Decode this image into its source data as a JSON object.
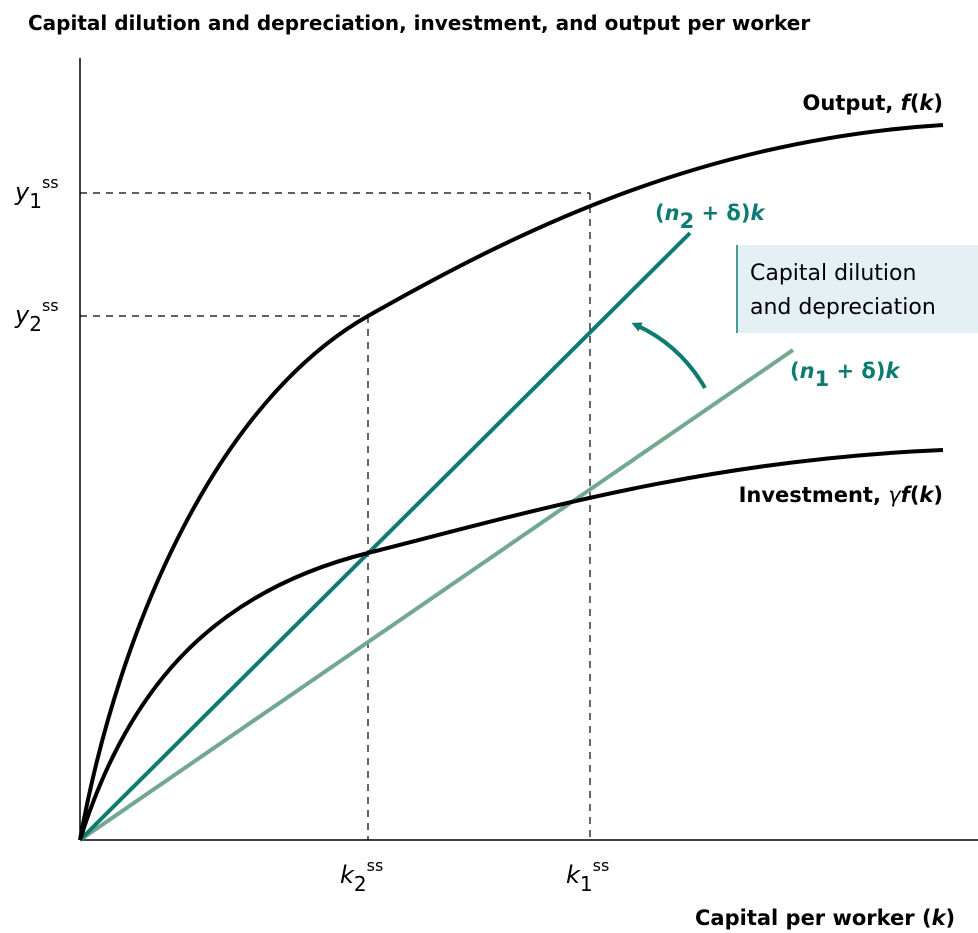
{
  "title": "Capital dilution and depreciation, investment, and output per worker",
  "x_axis_label": [
    "Capital per worker (",
    "k",
    ")"
  ],
  "output_label": [
    "Output, ",
    "f",
    "(",
    "k",
    ")"
  ],
  "investment_label": [
    "Investment, ",
    "γ",
    "f",
    "(",
    "k",
    ")"
  ],
  "line_n2_label": [
    "(",
    "n",
    "2",
    " + δ)",
    "k"
  ],
  "line_n1_label": [
    "(",
    "n",
    "1",
    " + δ)",
    "k"
  ],
  "box_label": [
    "Capital dilution",
    "and depreciation"
  ],
  "y1": [
    "y",
    "1",
    "ss"
  ],
  "y2": [
    "y",
    "2",
    "ss"
  ],
  "k2": [
    "k",
    "2",
    "ss"
  ],
  "k1": [
    "k",
    "1",
    "ss"
  ]
}
